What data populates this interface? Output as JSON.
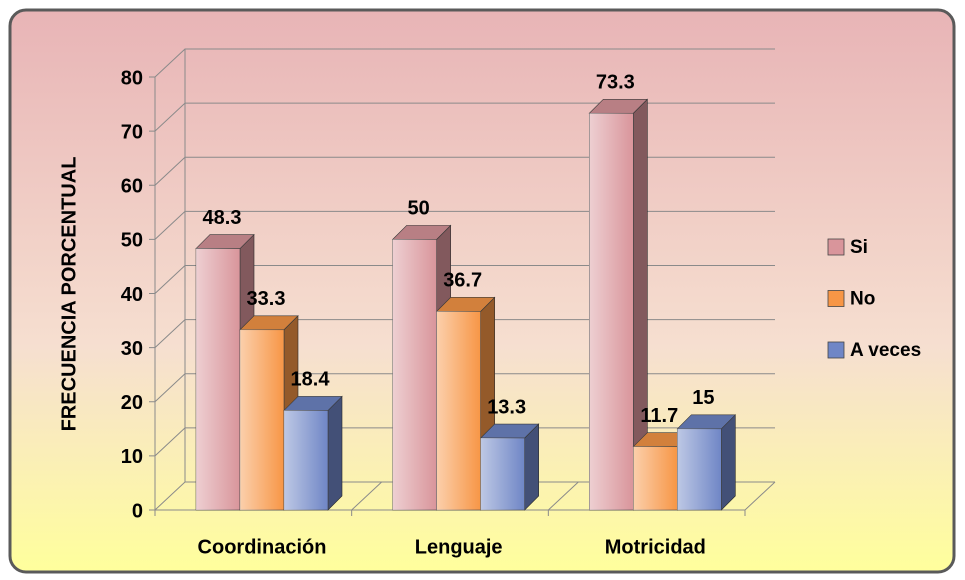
{
  "chart_data": {
    "type": "bar3d",
    "y_axis_label": "FRECUENCIA PORCENTUAL",
    "categories": [
      "Coordinación",
      "Lenguaje",
      "Motricidad"
    ],
    "series": [
      {
        "name": "Si",
        "color": "#d9959b",
        "values": [
          48.3,
          50,
          73.3
        ]
      },
      {
        "name": "No",
        "color": "#f79646",
        "values": [
          33.3,
          36.7,
          11.7
        ]
      },
      {
        "name": "A veces",
        "color": "#6f86c6",
        "values": [
          18.4,
          13.3,
          15
        ]
      }
    ],
    "ylim": [
      0,
      80
    ],
    "yticks": [
      0,
      10,
      20,
      30,
      40,
      50,
      60,
      70,
      80
    ],
    "grid": true,
    "legend": "right"
  }
}
